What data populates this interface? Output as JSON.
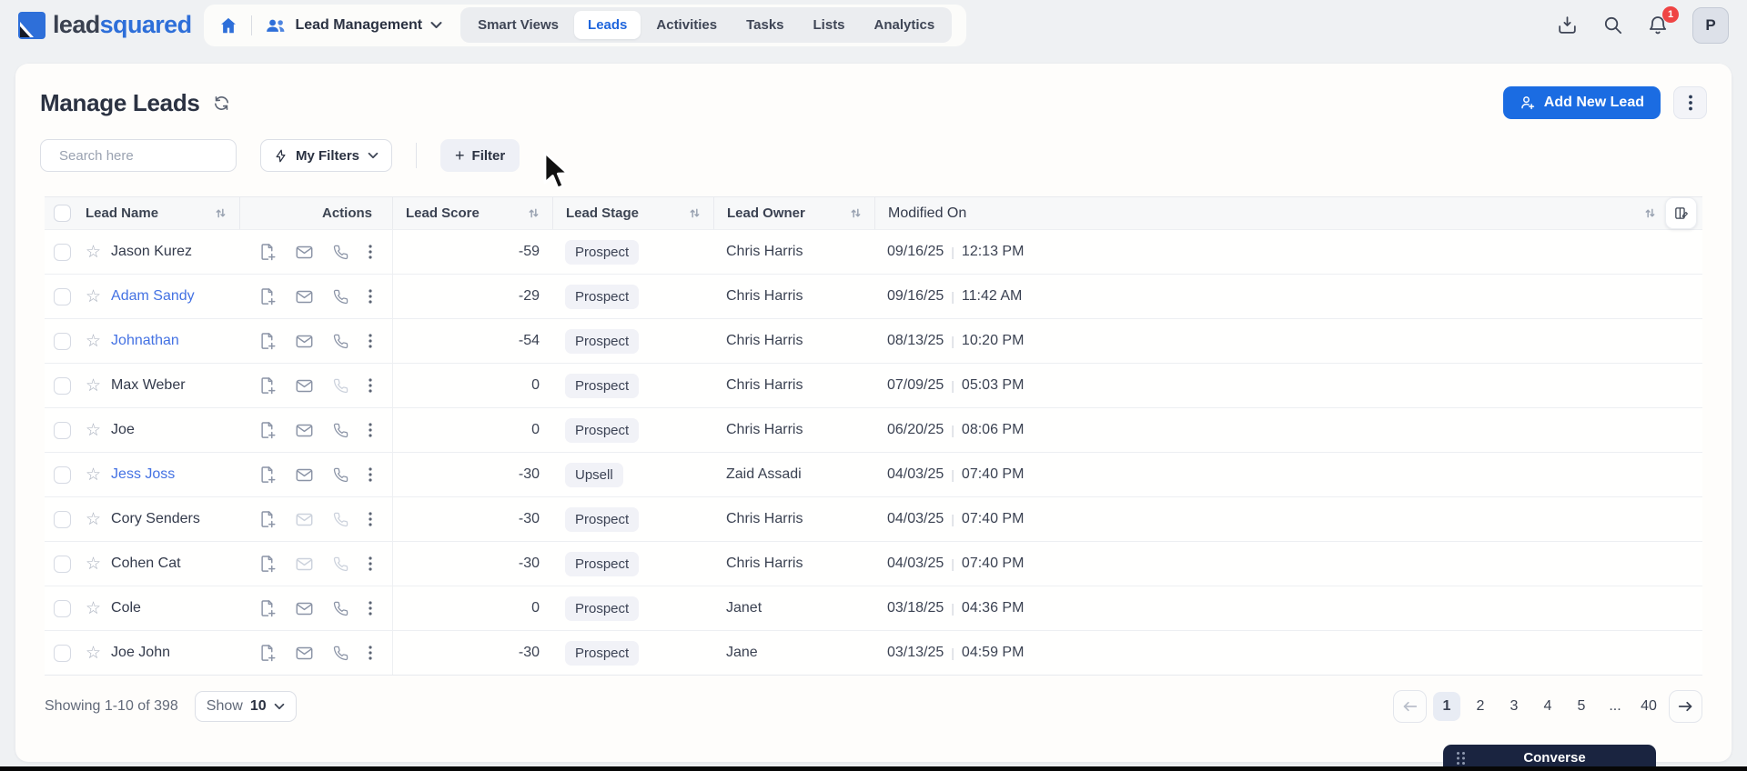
{
  "brand": {
    "word_dark": "lead",
    "word_accent": "squared"
  },
  "topnav": {
    "workspace_label": "Lead Management",
    "tabs": [
      {
        "label": "Smart Views",
        "active": false
      },
      {
        "label": "Leads",
        "active": true
      },
      {
        "label": "Activities",
        "active": false
      },
      {
        "label": "Tasks",
        "active": false
      },
      {
        "label": "Lists",
        "active": false
      },
      {
        "label": "Analytics",
        "active": false
      }
    ],
    "icons": [
      "home-icon",
      "import-leads-icon",
      "search-icon",
      "notifications-bell-icon"
    ],
    "notification_count": "1",
    "avatar_initial": "P"
  },
  "page": {
    "title": "Manage Leads",
    "add_new_lead_label": "Add New Lead"
  },
  "toolbar": {
    "search_placeholder": "Search here",
    "my_filters_label": "My Filters",
    "filter_plus": "+",
    "filter_label": "Filter"
  },
  "table": {
    "columns": [
      "Lead Name",
      "Actions",
      "Lead Score",
      "Lead Stage",
      "Lead Owner",
      "Modified On"
    ],
    "rows": [
      {
        "name": "Jason Kurez",
        "link": false,
        "score": "-59",
        "stage": "Prospect",
        "owner": "Chris Harris",
        "date": "09/16/25",
        "time": "12:13 PM",
        "muted_mail": false,
        "muted_phone": false
      },
      {
        "name": "Adam Sandy",
        "link": true,
        "score": "-29",
        "stage": "Prospect",
        "owner": "Chris Harris",
        "date": "09/16/25",
        "time": "11:42 AM",
        "muted_mail": false,
        "muted_phone": false
      },
      {
        "name": "Johnathan",
        "link": true,
        "score": "-54",
        "stage": "Prospect",
        "owner": "Chris Harris",
        "date": "08/13/25",
        "time": "10:20 PM",
        "muted_mail": false,
        "muted_phone": false
      },
      {
        "name": "Max Weber",
        "link": false,
        "score": "0",
        "stage": "Prospect",
        "owner": "Chris Harris",
        "date": "07/09/25",
        "time": "05:03 PM",
        "muted_mail": false,
        "muted_phone": true
      },
      {
        "name": "Joe",
        "link": false,
        "score": "0",
        "stage": "Prospect",
        "owner": "Chris Harris",
        "date": "06/20/25",
        "time": "08:06 PM",
        "muted_mail": false,
        "muted_phone": false
      },
      {
        "name": "Jess Joss",
        "link": true,
        "score": "-30",
        "stage": "Upsell",
        "owner": "Zaid Assadi",
        "date": "04/03/25",
        "time": "07:40 PM",
        "muted_mail": false,
        "muted_phone": false
      },
      {
        "name": "Cory Senders",
        "link": false,
        "score": "-30",
        "stage": "Prospect",
        "owner": "Chris Harris",
        "date": "04/03/25",
        "time": "07:40 PM",
        "muted_mail": true,
        "muted_phone": true
      },
      {
        "name": "Cohen Cat",
        "link": false,
        "score": "-30",
        "stage": "Prospect",
        "owner": "Chris Harris",
        "date": "04/03/25",
        "time": "07:40 PM",
        "muted_mail": true,
        "muted_phone": true
      },
      {
        "name": "Cole",
        "link": false,
        "score": "0",
        "stage": "Prospect",
        "owner": "Janet",
        "date": "03/18/25",
        "time": "04:36 PM",
        "muted_mail": false,
        "muted_phone": false
      },
      {
        "name": "Joe John",
        "link": false,
        "score": "-30",
        "stage": "Prospect",
        "owner": "Jane",
        "date": "03/13/25",
        "time": "04:59 PM",
        "muted_mail": false,
        "muted_phone": false
      }
    ]
  },
  "footer": {
    "showing_text": "Showing 1-10 of 398",
    "show_label": "Show",
    "show_value": "10",
    "pages": [
      "1",
      "2",
      "3",
      "4",
      "5",
      "...",
      "40"
    ],
    "active_page": "1"
  },
  "converse": {
    "label": "Converse"
  },
  "colors": {
    "accent": "#1b6ce2",
    "link": "#4472e3",
    "badge_bg": "#f1f2f7",
    "notification": "#ef4444",
    "converse_bg": "#1a2440"
  }
}
